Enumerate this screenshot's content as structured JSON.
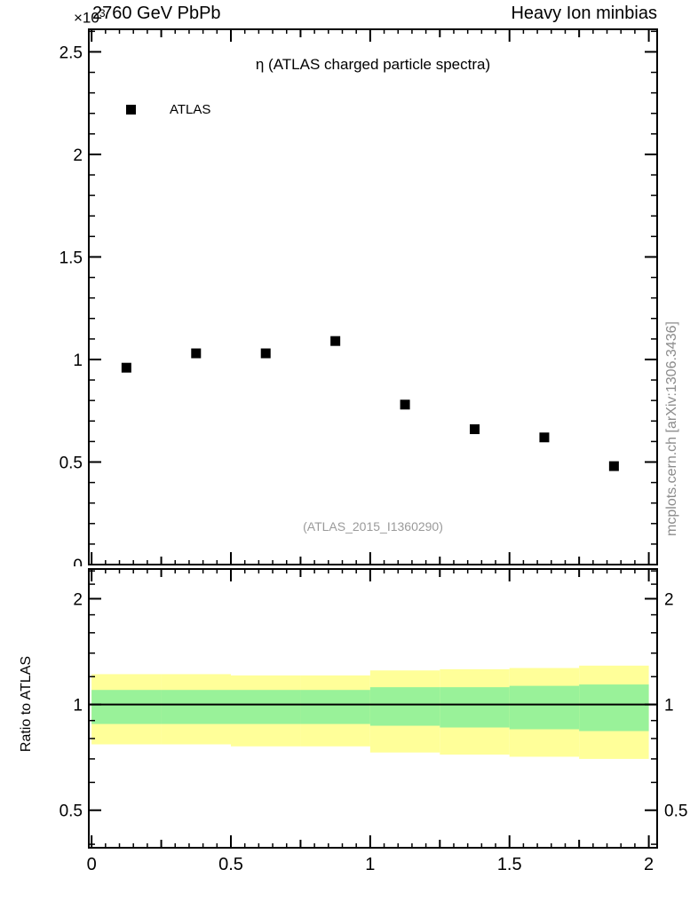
{
  "chart_data": {
    "type": "scatter",
    "title": "2760 GeV PbPb",
    "right_title": "Heavy Ion minbias",
    "subtitle": "η (ATLAS charged particle spectra)",
    "exponent": {
      "times": "×10",
      "power": "3"
    },
    "legend": [
      {
        "label": "ATLAS",
        "marker": "filled-square",
        "color": "#000000"
      }
    ],
    "watermark": "(ATLAS_2015_I1360290)",
    "right_note": "mcplots.cern.ch [arXiv:1306.3436]",
    "colors": {
      "outer_band": "#ffff99",
      "inner_band": "#99f299",
      "marker": "#000000",
      "note_gray": "#8c8c8c"
    },
    "main_panel": {
      "xlim": [
        -0.01,
        2.03
      ],
      "ylim": [
        0,
        2.61
      ],
      "xticks": {
        "values": [
          0,
          0.5,
          1,
          1.5,
          2
        ],
        "labels": [
          "0",
          "0.5",
          "1",
          "1.5",
          "2"
        ],
        "medium_step": 0.25,
        "minor_step": 0.05
      },
      "yticks": {
        "values": [
          0,
          0.5,
          1,
          1.5,
          2,
          2.5
        ],
        "labels": [
          "0",
          "0.5",
          "1",
          "1.5",
          "2",
          "2.5"
        ],
        "minor_step": 0.1
      },
      "grid": false,
      "series": [
        {
          "name": "ATLAS",
          "units": "×10³",
          "x": [
            0.125,
            0.375,
            0.625,
            0.875,
            1.125,
            1.375,
            1.625,
            1.875
          ],
          "y": [
            0.96,
            1.03,
            1.03,
            1.09,
            0.78,
            0.66,
            0.62,
            0.48
          ]
        }
      ]
    },
    "ratio_panel": {
      "ylabel": "Ratio to ATLAS",
      "yscale": "log",
      "ylim": [
        0.391,
        2.43
      ],
      "yticks": {
        "values": [
          0.5,
          1,
          2
        ],
        "labels": [
          "0.5",
          "1",
          "2"
        ],
        "minor": [
          0.4,
          0.6,
          0.7,
          0.8,
          0.9,
          1.2,
          1.4,
          1.6,
          1.8,
          2.2,
          2.4
        ]
      },
      "reference_line": 1,
      "bands": {
        "bin_edges": [
          0,
          0.25,
          0.5,
          0.75,
          1,
          1.25,
          1.5,
          1.75,
          2
        ],
        "outer": {
          "lo": [
            0.77,
            0.77,
            0.76,
            0.76,
            0.73,
            0.72,
            0.71,
            0.7
          ],
          "hi": [
            1.22,
            1.22,
            1.21,
            1.21,
            1.25,
            1.26,
            1.27,
            1.29
          ]
        },
        "inner": {
          "lo": [
            0.88,
            0.88,
            0.88,
            0.88,
            0.87,
            0.86,
            0.85,
            0.84
          ],
          "hi": [
            1.1,
            1.1,
            1.1,
            1.1,
            1.12,
            1.12,
            1.13,
            1.14
          ]
        }
      }
    }
  }
}
